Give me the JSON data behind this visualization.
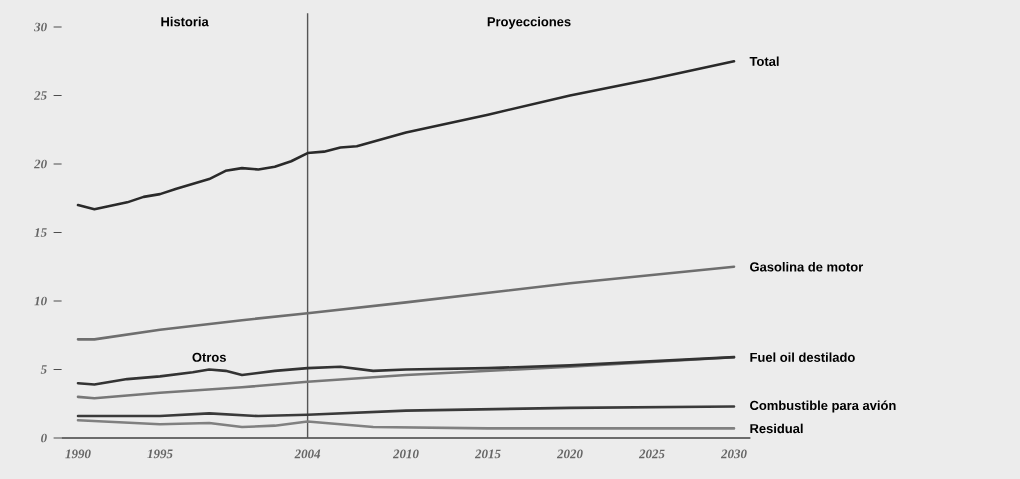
{
  "chart_data": {
    "type": "line",
    "xlim": [
      1989,
      2031
    ],
    "ylim": [
      0,
      31
    ],
    "xticks": [
      1990,
      1995,
      2004,
      2010,
      2015,
      2020,
      2025,
      2030
    ],
    "yticks": [
      0,
      5,
      10,
      15,
      20,
      25,
      30
    ],
    "series": [
      {
        "name": "Total",
        "color": "#2a2a2a",
        "x": [
          1990,
          1991,
          1993,
          1994,
          1995,
          1996,
          1998,
          1999,
          2000,
          2001,
          2002,
          2003,
          2004,
          2005,
          2006,
          2007,
          2010,
          2015,
          2020,
          2025,
          2030
        ],
        "values": [
          17.0,
          16.7,
          17.2,
          17.6,
          17.8,
          18.2,
          18.9,
          19.5,
          19.7,
          19.6,
          19.8,
          20.2,
          20.8,
          20.9,
          21.2,
          21.3,
          22.3,
          23.6,
          25.0,
          26.2,
          27.5
        ]
      },
      {
        "name": "Gasolina de motor",
        "color": "#6e6e6e",
        "x": [
          1990,
          1991,
          1995,
          2000,
          2004,
          2010,
          2020,
          2030
        ],
        "values": [
          7.2,
          7.2,
          7.9,
          8.6,
          9.1,
          9.9,
          11.3,
          12.5
        ]
      },
      {
        "name": "Fuel oil destilado",
        "color": "#777777",
        "x": [
          1990,
          1991,
          1995,
          2000,
          2004,
          2010,
          2020,
          2030
        ],
        "values": [
          3.0,
          2.9,
          3.3,
          3.7,
          4.1,
          4.6,
          5.2,
          5.9
        ]
      },
      {
        "name": "Otros",
        "color": "#333333",
        "x": [
          1990,
          1991,
          1993,
          1995,
          1997,
          1998,
          1999,
          2000,
          2002,
          2004,
          2006,
          2008,
          2010,
          2015,
          2020,
          2025,
          2030
        ],
        "values": [
          4.0,
          3.9,
          4.3,
          4.5,
          4.8,
          5.0,
          4.9,
          4.6,
          4.9,
          5.1,
          5.2,
          4.9,
          5.0,
          5.1,
          5.3,
          5.6,
          5.9
        ]
      },
      {
        "name": "Combustible para avión",
        "color": "#3a3a3a",
        "x": [
          1990,
          1995,
          1998,
          2001,
          2004,
          2010,
          2020,
          2030
        ],
        "values": [
          1.6,
          1.6,
          1.8,
          1.6,
          1.7,
          2.0,
          2.2,
          2.3
        ]
      },
      {
        "name": "Residual",
        "color": "#808080",
        "x": [
          1990,
          1995,
          1998,
          2000,
          2002,
          2004,
          2008,
          2015,
          2030
        ],
        "values": [
          1.3,
          1.0,
          1.1,
          0.8,
          0.9,
          1.2,
          0.8,
          0.7,
          0.7
        ]
      }
    ],
    "ref_lines": [
      {
        "axis": "x",
        "value": 2004,
        "color": "#555555"
      }
    ],
    "annotations": [
      "Historia",
      "Proyecciones"
    ]
  }
}
